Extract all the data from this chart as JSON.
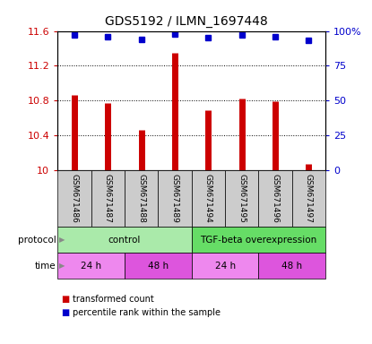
{
  "title": "GDS5192 / ILMN_1697448",
  "samples": [
    "GSM671486",
    "GSM671487",
    "GSM671488",
    "GSM671489",
    "GSM671494",
    "GSM671495",
    "GSM671496",
    "GSM671497"
  ],
  "red_values": [
    10.86,
    10.77,
    10.46,
    11.35,
    10.69,
    10.82,
    10.79,
    10.07
  ],
  "blue_values": [
    97,
    96,
    94,
    98,
    95,
    97,
    96,
    93
  ],
  "ylim_left": [
    10,
    11.6
  ],
  "ylim_right": [
    0,
    100
  ],
  "yticks_left": [
    10,
    10.4,
    10.8,
    11.2,
    11.6
  ],
  "yticks_right": [
    0,
    25,
    50,
    75,
    100
  ],
  "ytick_labels_left": [
    "10",
    "10.4",
    "10.8",
    "11.2",
    "11.6"
  ],
  "ytick_labels_right": [
    "0",
    "25",
    "50",
    "75",
    "100%"
  ],
  "bar_color": "#cc0000",
  "dot_color": "#0000cc",
  "protocol_groups": [
    {
      "label": "control",
      "start": 0,
      "end": 4,
      "color": "#aaeaaa"
    },
    {
      "label": "TGF-beta overexpression",
      "start": 4,
      "end": 8,
      "color": "#66dd66"
    }
  ],
  "time_groups": [
    {
      "label": "24 h",
      "start": 0,
      "end": 2,
      "color": "#ee88ee"
    },
    {
      "label": "48 h",
      "start": 2,
      "end": 4,
      "color": "#dd55dd"
    },
    {
      "label": "24 h",
      "start": 4,
      "end": 6,
      "color": "#ee88ee"
    },
    {
      "label": "48 h",
      "start": 6,
      "end": 8,
      "color": "#dd55dd"
    }
  ],
  "legend_red": "transformed count",
  "legend_blue": "percentile rank within the sample",
  "protocol_label": "protocol",
  "time_label": "time",
  "label_color_left": "#cc0000",
  "label_color_right": "#0000cc",
  "sample_box_color": "#cccccc",
  "bg_color": "#ffffff"
}
